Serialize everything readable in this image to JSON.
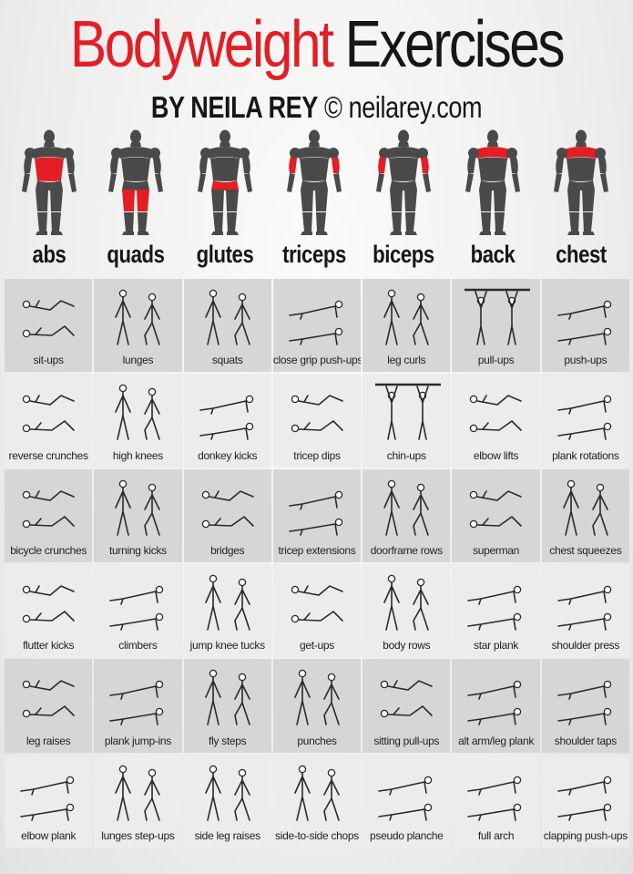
{
  "title": {
    "part1": "Bodyweight",
    "part2": "Exercises"
  },
  "subtitle": {
    "by": "BY NEILA REY",
    "credit": "© neilarey.com"
  },
  "colors": {
    "accent": "#e31e24",
    "text": "#161616",
    "figure": "#4a4a4a"
  },
  "muscles": [
    {
      "label": "abs",
      "highlight": "abs",
      "view": "front"
    },
    {
      "label": "quads",
      "highlight": "quads",
      "view": "front"
    },
    {
      "label": "glutes",
      "highlight": "glutes",
      "view": "back"
    },
    {
      "label": "triceps",
      "highlight": "triceps",
      "view": "back"
    },
    {
      "label": "biceps",
      "highlight": "biceps",
      "view": "front"
    },
    {
      "label": "back",
      "highlight": "back",
      "view": "back"
    },
    {
      "label": "chest",
      "highlight": "chest",
      "view": "front"
    }
  ],
  "exercises": [
    [
      "sit-ups",
      "lunges",
      "squats",
      "close grip push-ups",
      "leg curls",
      "pull-ups",
      "push-ups"
    ],
    [
      "reverse crunches",
      "high knees",
      "donkey kicks",
      "tricep dips",
      "chin-ups",
      "elbow lifts",
      "plank rotations"
    ],
    [
      "bicycle crunches",
      "turning kicks",
      "bridges",
      "tricep extensions",
      "doorframe rows",
      "superman",
      "chest squeezes"
    ],
    [
      "flutter kicks",
      "climbers",
      "jump knee tucks",
      "get-ups",
      "body rows",
      "star plank",
      "shoulder press"
    ],
    [
      "leg raises",
      "plank jump-ins",
      "fly steps",
      "punches",
      "sitting pull-ups",
      "alt arm/leg plank",
      "shoulder taps"
    ],
    [
      "elbow plank",
      "lunges step-ups",
      "side leg raises",
      "side-to-side chops",
      "pseudo planche",
      "full arch",
      "clapping push-ups"
    ]
  ]
}
